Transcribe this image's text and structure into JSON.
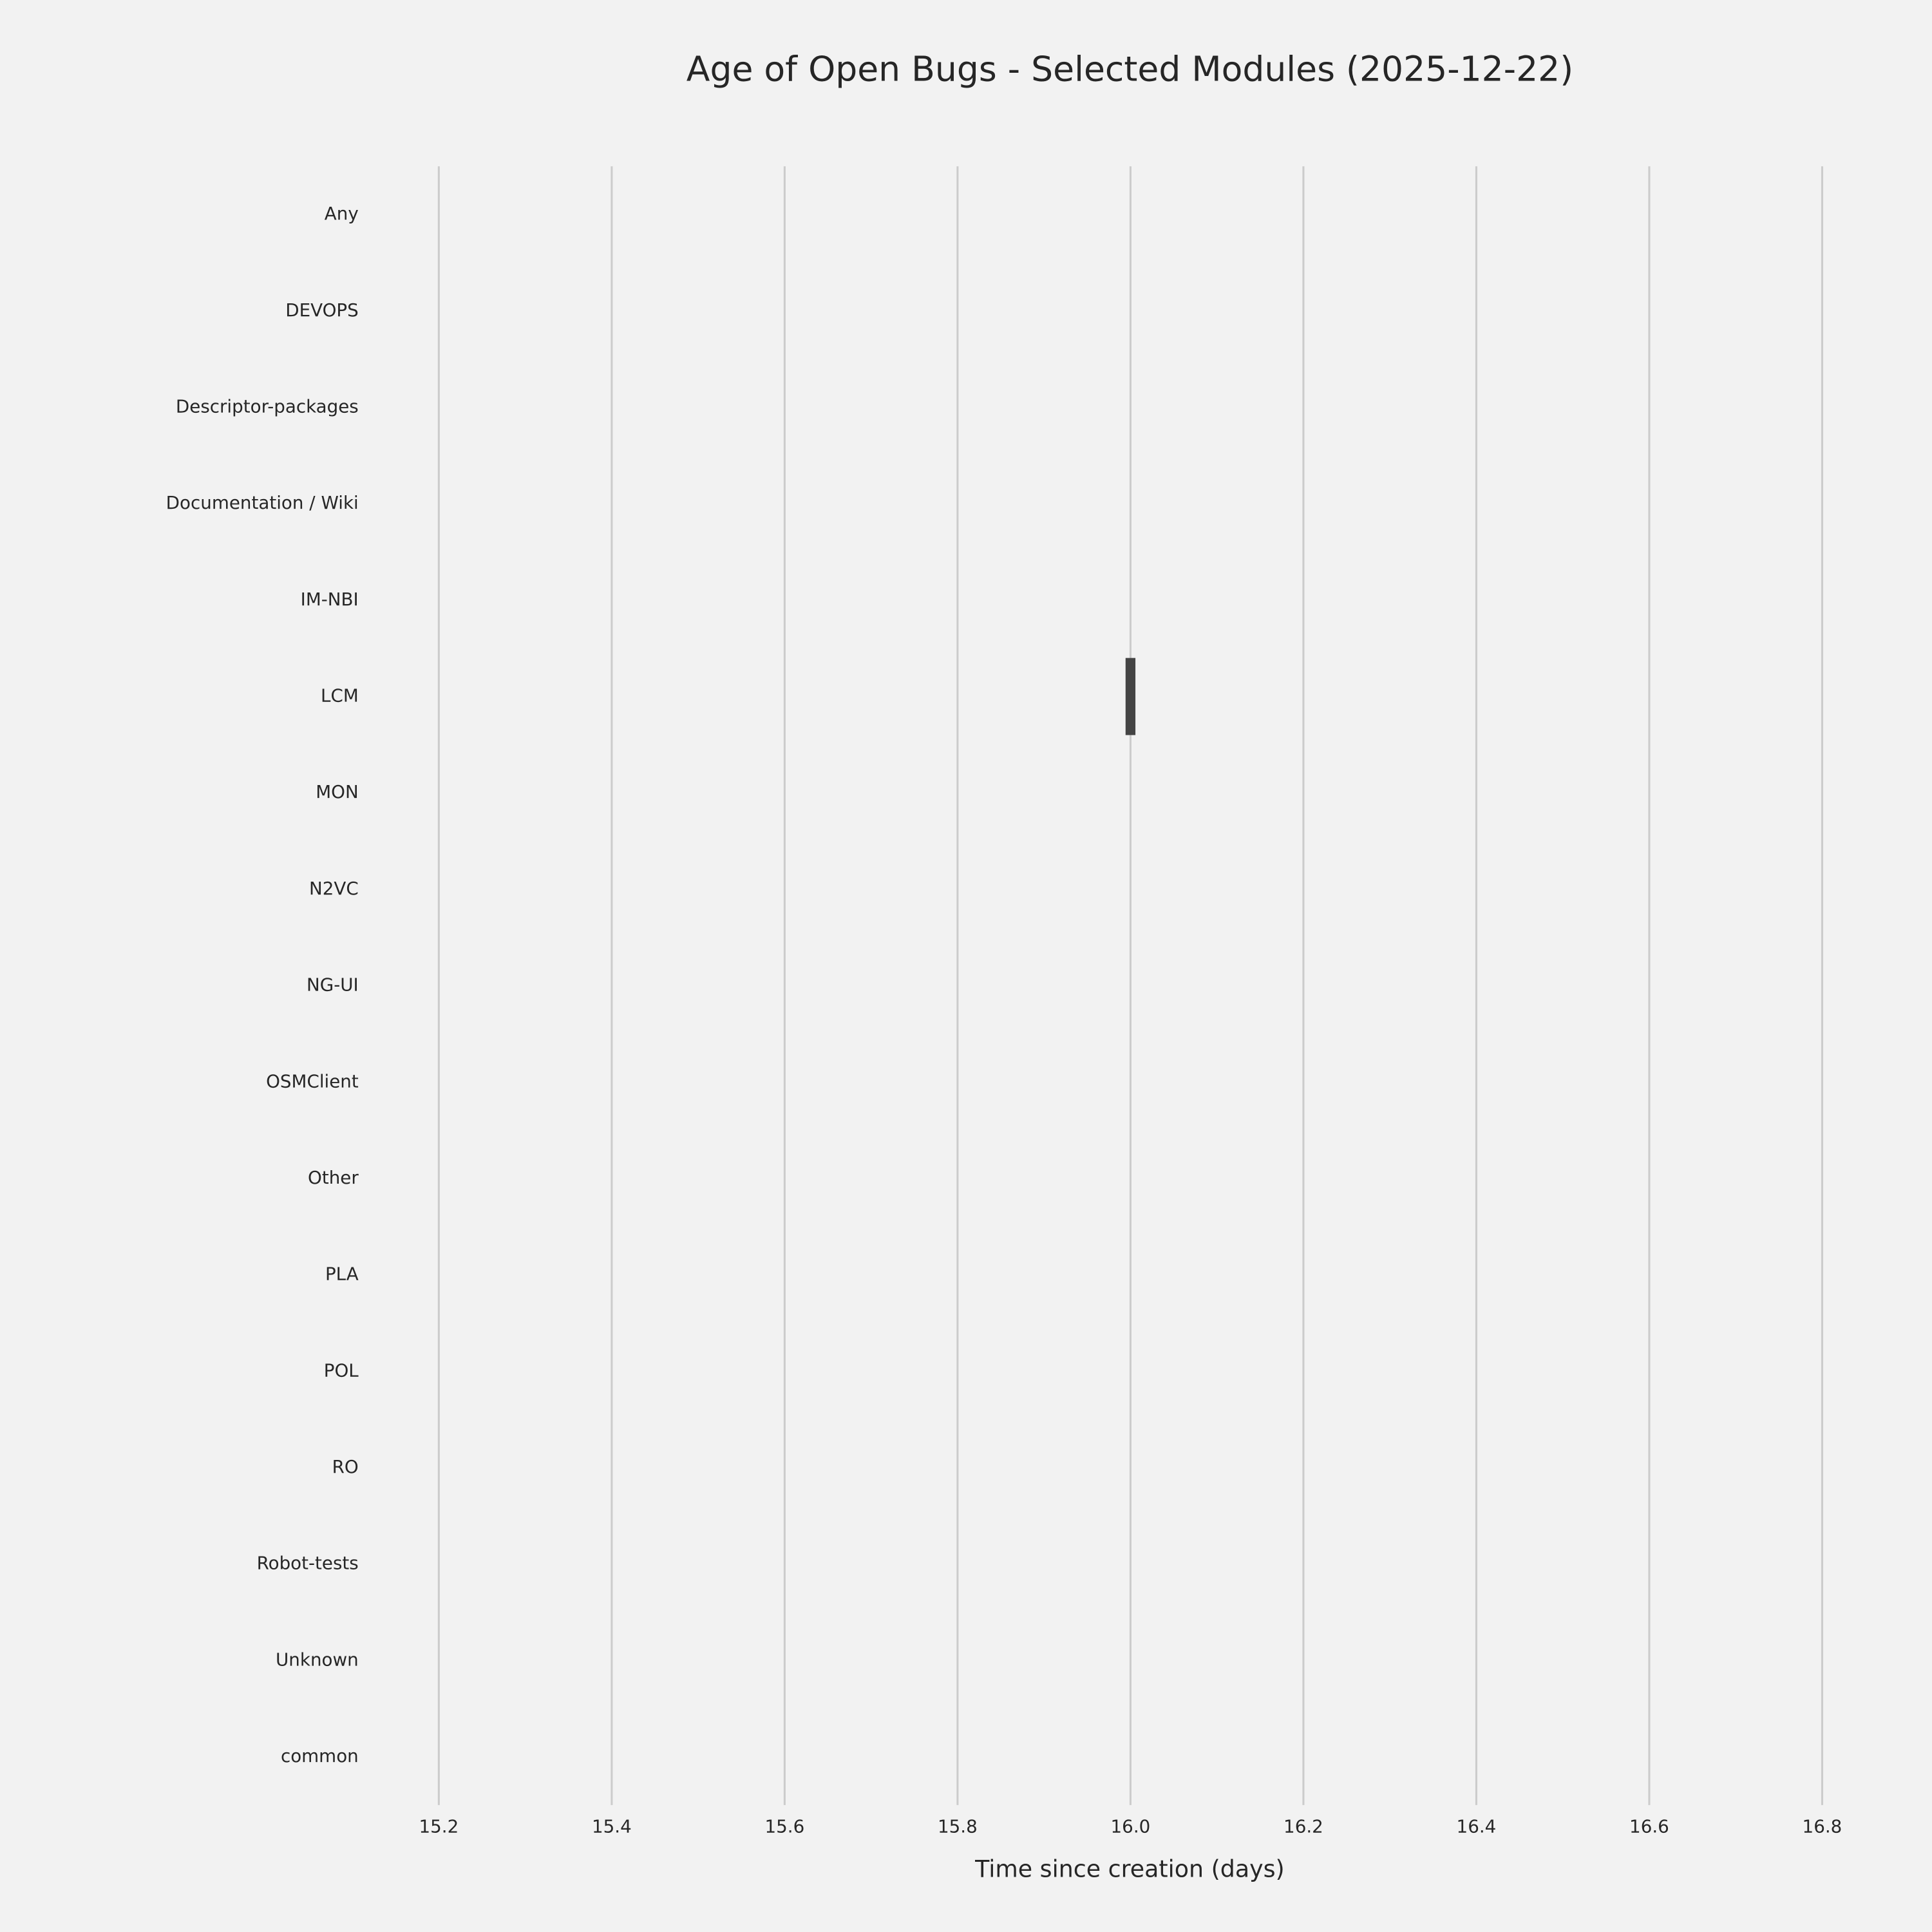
{
  "chart_data": {
    "type": "boxplot",
    "title": "Age of Open Bugs - Selected Modules (2025-12-22)",
    "x_label": "Time since creation (days)",
    "categories": [
      "Any",
      "DEVOPS",
      "Descriptor-packages",
      "Documentation / Wiki",
      "IM-NBI",
      "LCM",
      "MON",
      "N2VC",
      "NG-UI",
      "OSMClient",
      "Other",
      "PLA",
      "POL",
      "RO",
      "Robot-tests",
      "Unknown",
      "common"
    ],
    "values": [
      null,
      null,
      null,
      null,
      null,
      16,
      null,
      null,
      null,
      null,
      null,
      null,
      null,
      null,
      null,
      null,
      null
    ],
    "color": "#444444",
    "xlim": [
      15.12,
      16.88
    ],
    "xticks": [
      15.2,
      15.4,
      15.6,
      15.8,
      {
        "value": 16,
        "label": "16.0"
      },
      16.2,
      16.4,
      16.6,
      16.8
    ],
    "grid": true
  }
}
